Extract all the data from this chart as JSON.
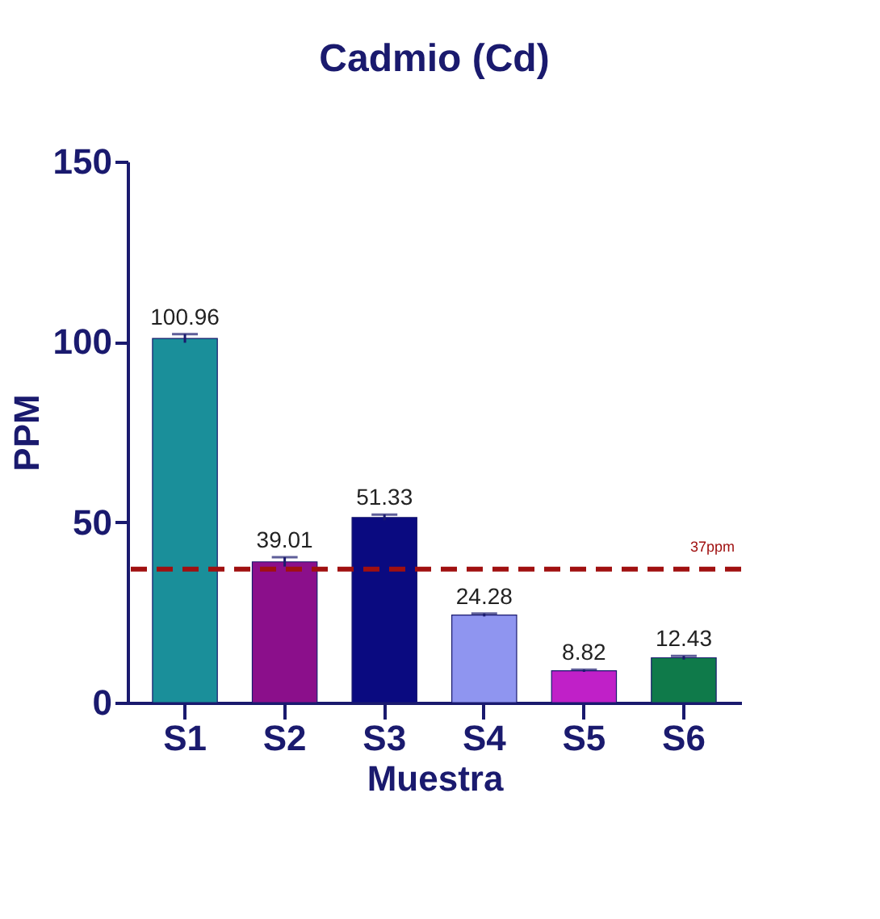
{
  "chart_data": {
    "type": "bar",
    "title": "Cadmio (Cd)",
    "xlabel": "Muestra",
    "ylabel": "PPM",
    "categories": [
      "S1",
      "S2",
      "S3",
      "S4",
      "S5",
      "S6"
    ],
    "values": [
      100.96,
      39.01,
      51.33,
      24.28,
      8.82,
      12.43
    ],
    "colors": [
      "#1a8f9a",
      "#8b0f8b",
      "#0a0a80",
      "#8f95f0",
      "#c020c8",
      "#0f7a4a"
    ],
    "errors": [
      1.2,
      1.3,
      0.8,
      0.4,
      0.3,
      0.5
    ],
    "data_labels": true,
    "ylim": [
      0,
      150
    ],
    "yticks": [
      0,
      50,
      100,
      150
    ],
    "ref_lines": [
      {
        "axis": "y",
        "value": 37,
        "label": "37ppm",
        "color": "#a01010",
        "line_style": "dashed"
      }
    ],
    "grid": false
  }
}
